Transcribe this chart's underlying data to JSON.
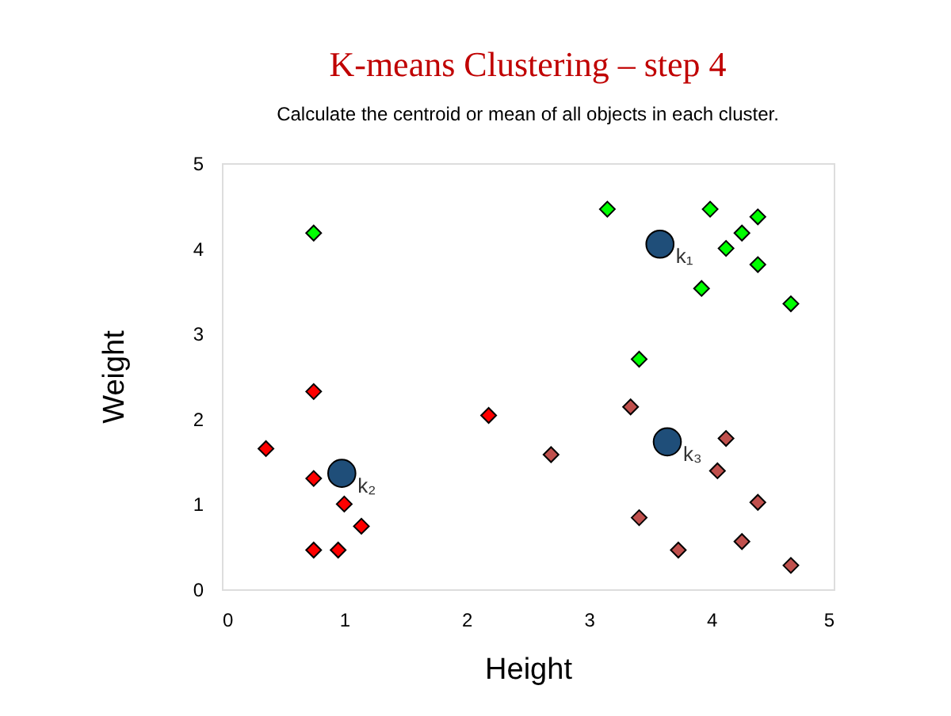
{
  "chart_data": {
    "type": "scatter",
    "title": "K-means Clustering – step 4",
    "subtitle": "Calculate the centroid or mean of all objects in each cluster.",
    "xlabel": "Height",
    "ylabel": "Weight",
    "xlim": [
      0,
      5
    ],
    "ylim": [
      0,
      5
    ],
    "xticks": [
      0,
      1,
      2,
      3,
      4,
      5
    ],
    "yticks": [
      0,
      1,
      2,
      3,
      4,
      5
    ],
    "series": [
      {
        "color": "#00ff00",
        "marker": "diamond",
        "x": [
          0.75,
          3.15,
          3.99,
          4.38,
          4.25,
          4.12,
          4.38,
          3.92,
          4.65,
          3.41
        ],
        "values": [
          4.18,
          4.46,
          4.46,
          4.37,
          4.18,
          4.0,
          3.81,
          3.53,
          3.35,
          2.7
        ]
      },
      {
        "color": "#ff0000",
        "marker": "diamond",
        "x": [
          0.75,
          0.36,
          0.75,
          1.0,
          1.14,
          0.75,
          0.95,
          2.18
        ],
        "values": [
          2.32,
          1.65,
          1.3,
          1.0,
          0.74,
          0.46,
          0.46,
          2.04
        ]
      },
      {
        "color": "#c0504d",
        "marker": "diamond",
        "x": [
          3.34,
          2.69,
          4.12,
          4.05,
          4.38,
          3.41,
          4.25,
          3.73,
          4.65
        ],
        "values": [
          2.14,
          1.58,
          1.77,
          1.39,
          1.02,
          0.84,
          0.56,
          0.46,
          0.28
        ]
      },
      {
        "color": "#1f4e79",
        "marker": "circle",
        "x": [
          3.58,
          0.98,
          3.64
        ],
        "values": [
          4.05,
          1.36,
          1.73
        ]
      }
    ],
    "annotations": [
      {
        "text": "k₁",
        "x": 3.58,
        "y": 4.05
      },
      {
        "text": "k₂",
        "x": 0.98,
        "y": 1.36
      },
      {
        "text": "k₃",
        "x": 3.64,
        "y": 1.73
      }
    ]
  }
}
